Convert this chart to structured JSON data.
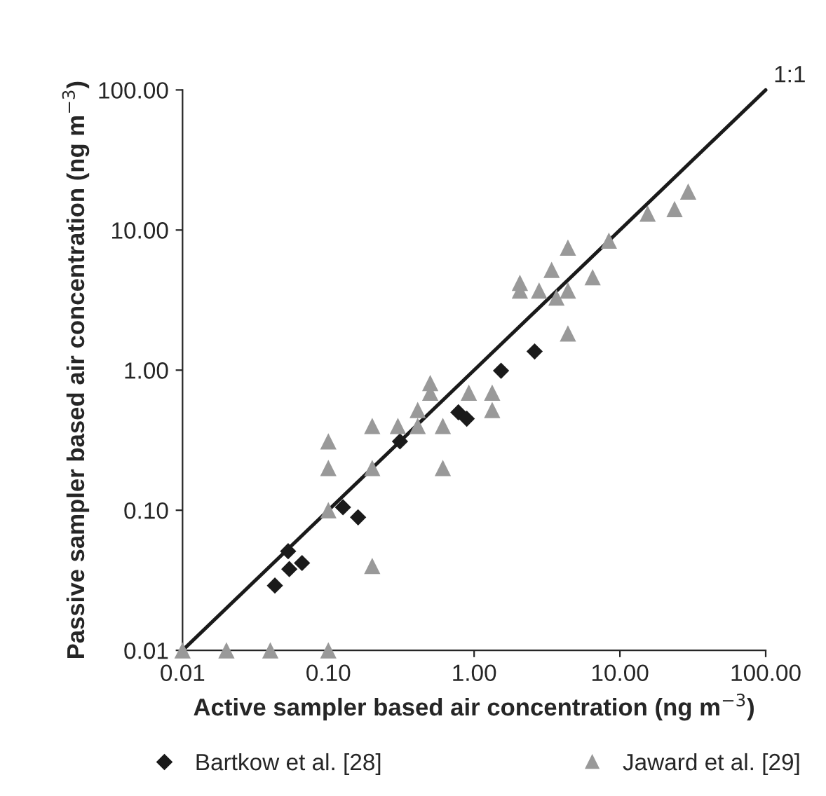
{
  "chart_data": {
    "type": "scatter",
    "xlabel": "Active sampler based air concentration (ng m$^{−3}$)",
    "ylabel": "Passive sampler based air concentration (ng m$^{−3}$)",
    "log": "xy",
    "xlim": [
      0.01,
      100
    ],
    "ylim": [
      0.01,
      100
    ],
    "xticks": [
      {
        "value": 0.01,
        "label": "0.01"
      },
      {
        "value": 0.1,
        "label": "0.10"
      },
      {
        "value": 1,
        "label": "1.00"
      },
      {
        "value": 10,
        "label": "10.00"
      },
      {
        "value": 100,
        "label": "100.00"
      }
    ],
    "yticks": [
      {
        "value": 0.01,
        "label": "0.01"
      },
      {
        "value": 0.1,
        "label": "0.10"
      },
      {
        "value": 1,
        "label": "1.00"
      },
      {
        "value": 10,
        "label": "10.00"
      },
      {
        "value": 100,
        "label": "100.00"
      }
    ],
    "grid": false,
    "legend": "bottom",
    "series": [
      {
        "name": "Bartkow et al. [28]",
        "marker": "diamond",
        "color": "#1a1a1a",
        "x": [
          0.043,
          0.053,
          0.054,
          0.066,
          0.126,
          0.16,
          0.31,
          0.78,
          0.89,
          1.53,
          2.6
        ],
        "values": [
          0.029,
          0.051,
          0.038,
          0.042,
          0.105,
          0.089,
          0.31,
          0.5,
          0.45,
          0.99,
          1.36
        ]
      },
      {
        "name": "Jaward et al. [29]",
        "marker": "triangle",
        "color": "#999999",
        "x": [
          0.01,
          0.02,
          0.04,
          0.1,
          0.1,
          0.1,
          0.1,
          0.2,
          0.2,
          0.2,
          0.3,
          0.41,
          0.41,
          0.5,
          0.5,
          0.61,
          0.61,
          0.92,
          1.33,
          1.33,
          2.06,
          2.06,
          2.79,
          3.4,
          3.67,
          4.4,
          4.4,
          4.4,
          6.5,
          8.4,
          15.5,
          23.7,
          29.4
        ],
        "values": [
          0.01,
          0.01,
          0.01,
          0.01,
          0.31,
          0.2,
          0.1,
          0.04,
          0.2,
          0.4,
          0.4,
          0.52,
          0.4,
          0.81,
          0.69,
          0.4,
          0.2,
          0.69,
          0.69,
          0.52,
          4.2,
          3.7,
          3.7,
          5.2,
          3.3,
          7.5,
          3.7,
          1.83,
          4.6,
          8.4,
          13.1,
          14.1,
          18.8
        ]
      },
      {
        "name": "1:1",
        "type": "line",
        "line_style": "solid",
        "color": "#1a1a1a",
        "x": [
          0.01,
          100
        ],
        "values": [
          0.01,
          100
        ]
      }
    ]
  }
}
